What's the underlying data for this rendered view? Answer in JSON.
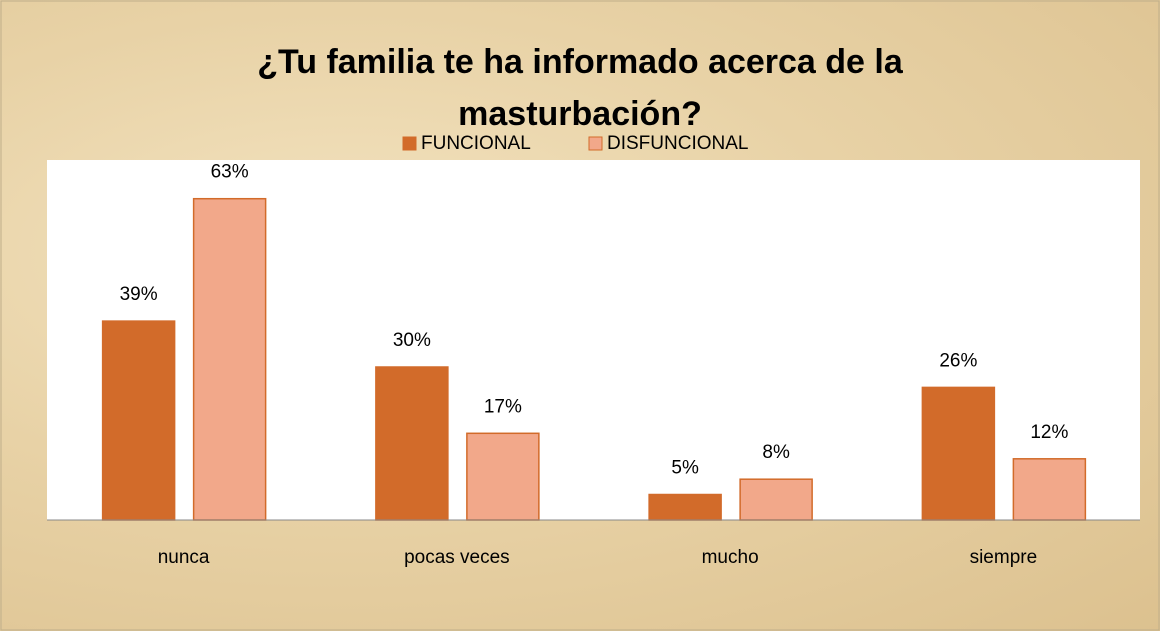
{
  "chart_data": {
    "type": "bar",
    "title": "¿Tu familia te ha informado acerca de la masturbación?",
    "categories": [
      "nunca",
      "pocas veces",
      "mucho",
      "siempre"
    ],
    "series": [
      {
        "name": "FUNCIONAL",
        "color": "#d26b2a",
        "values": [
          39,
          30,
          5,
          26
        ],
        "value_labels": [
          "39%",
          "30%",
          "5%",
          "26%"
        ]
      },
      {
        "name": "DISFUNCIONAL",
        "color": "#f2a88a",
        "values": [
          63,
          17,
          8,
          12
        ],
        "value_labels": [
          "63%",
          "17%",
          "8%",
          "12%"
        ]
      }
    ],
    "legend": "top"
  }
}
